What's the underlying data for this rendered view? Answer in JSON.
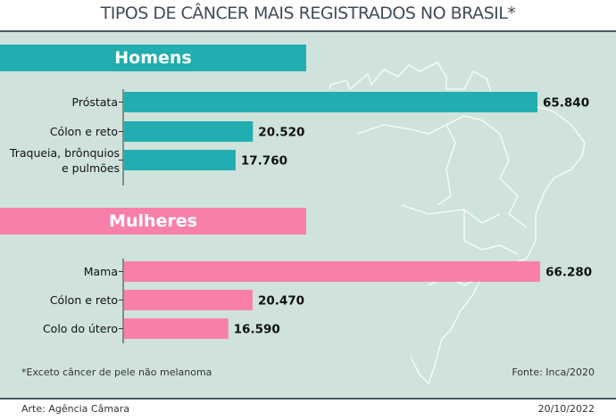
{
  "title": "TIPOS DE CÂNCER MAIS REGISTRADOS NO BRASIL*",
  "colors": {
    "homens": "#22aeb0",
    "mulheres": "#f97fab",
    "panel": "#cfe3dc"
  },
  "chart_data": [
    {
      "type": "bar",
      "orientation": "horizontal",
      "title": "Homens",
      "categories": [
        "Próstata",
        "Cólon e reto",
        "Traqueia, brônquios e pulmões"
      ],
      "values": [
        65840,
        20520,
        17760
      ],
      "labels": [
        "65.840",
        "20.520",
        "17.760"
      ]
    },
    {
      "type": "bar",
      "orientation": "horizontal",
      "title": "Mulheres",
      "categories": [
        "Mama",
        "Cólon e reto",
        "Colo do útero"
      ],
      "values": [
        66280,
        20470,
        16590
      ],
      "labels": [
        "66.280",
        "20.470",
        "16.590"
      ]
    }
  ],
  "footnote": "*Exceto câncer de pele não melanoma",
  "source": "Fonte: Inca/2020",
  "credit": "Arte: Agência Câmara",
  "date": "20/10/2022"
}
